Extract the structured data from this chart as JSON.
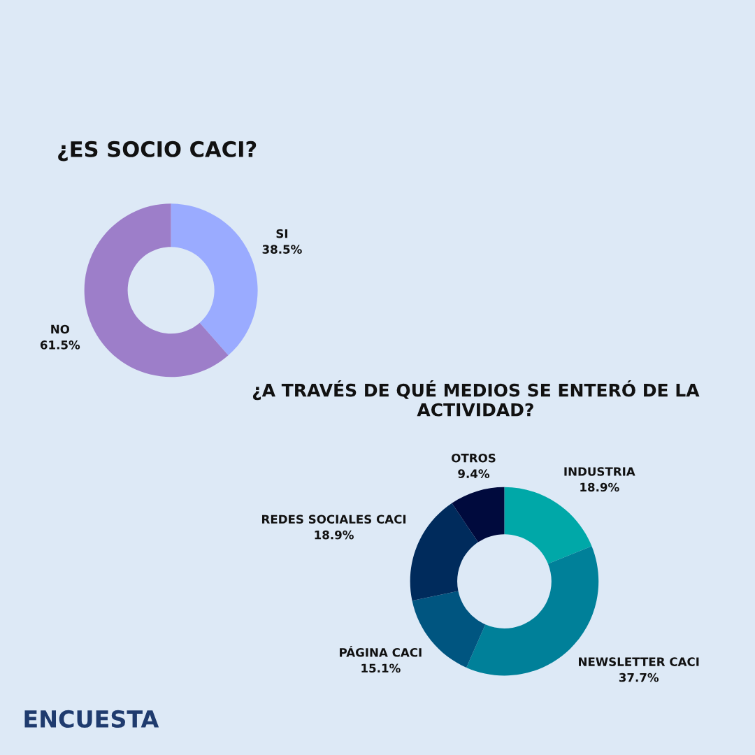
{
  "chart_data": [
    {
      "type": "donut",
      "title": "¿ES SOCIO CACI?",
      "categories": [
        "SI",
        "NO"
      ],
      "values": [
        38.5,
        61.5
      ],
      "value_labels": [
        "38.5%",
        "61.5%"
      ],
      "colors": [
        "#9aabff",
        "#9d7ec9"
      ]
    },
    {
      "type": "donut",
      "title": "¿A TRAVÉS DE QUÉ MEDIOS SE ENTERÓ DE LA ACTIVIDAD?",
      "categories": [
        "INDUSTRIA",
        "NEWSLETTER CACI",
        "PÁGINA CACI",
        "REDES SOCIALES CACI",
        "OTROS"
      ],
      "values": [
        18.9,
        37.7,
        15.1,
        18.9,
        9.4
      ],
      "value_labels": [
        "18.9%",
        "37.7%",
        "15.1%",
        "18.9%",
        "9.4%"
      ],
      "colors": [
        "#00a8a8",
        "#008099",
        "#005580",
        "#002b5c",
        "#000a3d"
      ],
      "annotations": [
        "ENCUESTA"
      ]
    }
  ]
}
